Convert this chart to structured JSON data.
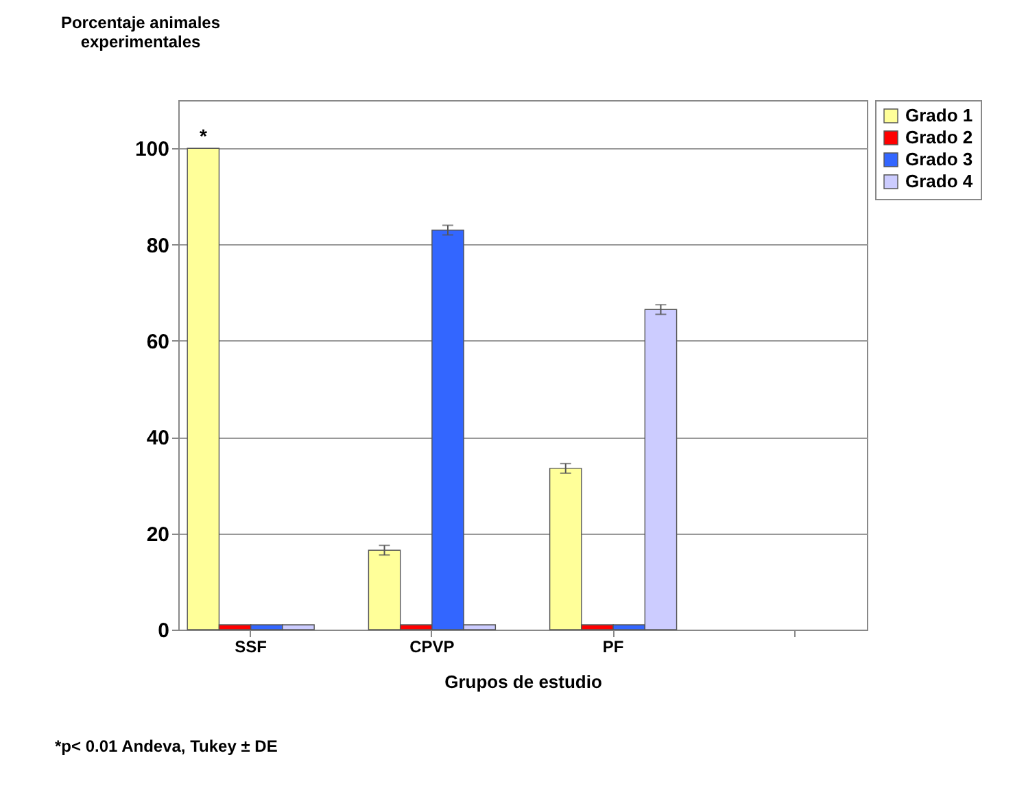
{
  "chart_data": {
    "type": "bar",
    "ylabel": "Porcentaje animales experimentales",
    "xlabel": "Grupos de estudio",
    "categories": [
      "SSF",
      "CPVP",
      "PF",
      null
    ],
    "series": [
      {
        "name": "Grado 1",
        "color": "#ffff99",
        "values": [
          100,
          16.5,
          33.5,
          null
        ],
        "errors": [
          null,
          1,
          1,
          null
        ]
      },
      {
        "name": "Grado 2",
        "color": "#ff0000",
        "values": [
          1,
          1,
          1,
          null
        ]
      },
      {
        "name": "Grado 3",
        "color": "#3366ff",
        "values": [
          1,
          83,
          1,
          null
        ],
        "errors": [
          null,
          1,
          null,
          null
        ]
      },
      {
        "name": "Grado 4",
        "color": "#ccccff",
        "values": [
          1,
          1,
          66.5,
          null
        ],
        "errors": [
          null,
          null,
          1,
          null
        ]
      }
    ],
    "ylim": [
      0,
      110
    ],
    "yticks": [
      0,
      20,
      40,
      60,
      80,
      100
    ],
    "grid": "y",
    "legend": "right",
    "annotations": [
      "*",
      "*p< 0.01 Andeva, Tukey ± DE"
    ]
  }
}
